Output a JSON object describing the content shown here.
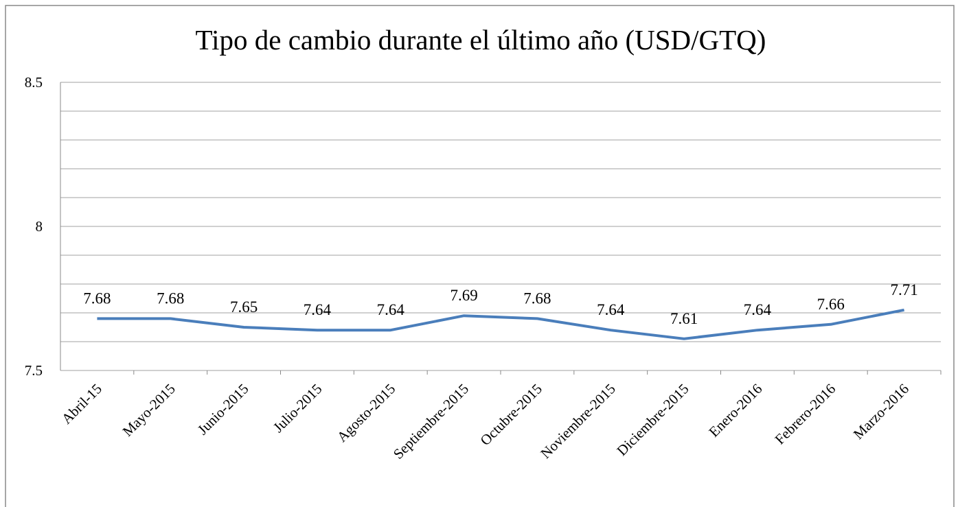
{
  "chart_data": {
    "type": "line",
    "title": "Tipo de cambio durante el último año (USD/GTQ)",
    "categories": [
      "Abril-15",
      "Mayo-2015",
      "Junio-2015",
      "Julio-2015",
      "Agosto-2015",
      "Septiembre-2015",
      "Octubre-2015",
      "Noviembre-2015",
      "Diciembre-2015",
      "Enero-2016",
      "Febrero-2016",
      "Marzo-2016"
    ],
    "series": [
      {
        "name": "USD/GTQ",
        "color": "#4a7ebb",
        "values": [
          7.68,
          7.68,
          7.65,
          7.64,
          7.64,
          7.69,
          7.68,
          7.64,
          7.61,
          7.64,
          7.66,
          7.71
        ]
      }
    ],
    "ylim": [
      7.5,
      8.5
    ],
    "yticks": [
      7.5,
      8,
      8.5
    ],
    "y_minor_ticks": [
      7.6,
      7.7,
      7.8,
      7.9,
      8.1,
      8.2,
      8.3,
      8.4
    ],
    "grid": true,
    "data_labels": true
  }
}
